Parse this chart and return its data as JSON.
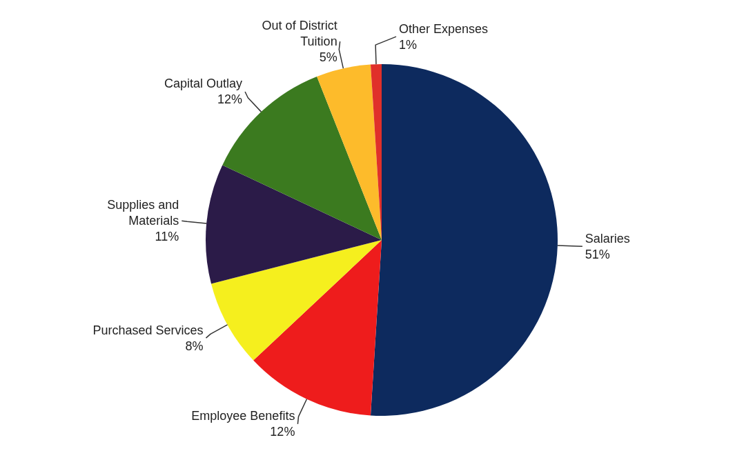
{
  "chart_data": {
    "type": "pie",
    "categories": [
      "Salaries",
      "Employee Benefits",
      "Purchased Services",
      "Supplies and Materials",
      "Capital Outlay",
      "Out of District Tuition",
      "Other Expenses"
    ],
    "values": [
      51,
      12,
      8,
      11,
      12,
      5,
      1
    ],
    "colors": [
      "#0d2a5e",
      "#ee1c1c",
      "#f5ef1e",
      "#2b1b48",
      "#3b7a1f",
      "#fdbb2b",
      "#e0302a"
    ],
    "value_labels": [
      "51%",
      "12%",
      "8%",
      "11%",
      "12%",
      "5%",
      "1%"
    ],
    "legend": false
  }
}
